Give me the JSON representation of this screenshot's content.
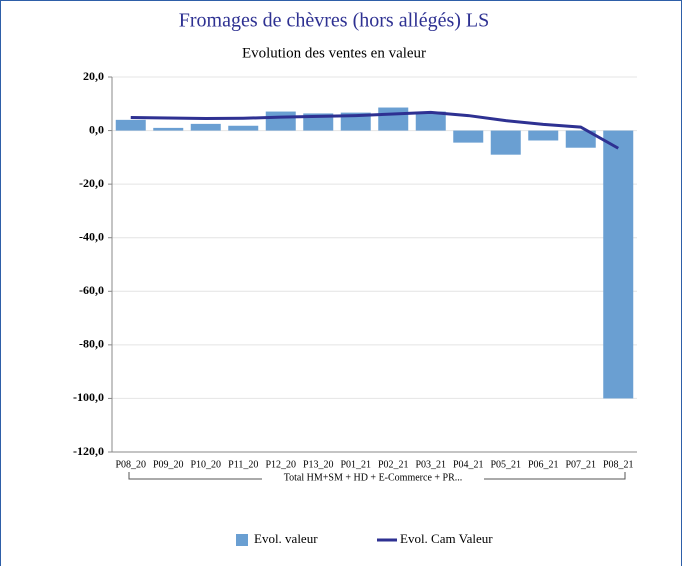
{
  "chart_data": {
    "type": "bar-line",
    "title": "Fromages de chèvres (hors allégés) LS",
    "subtitle": "Evolution des ventes en valeur",
    "categories": [
      "P08_20",
      "P09_20",
      "P10_20",
      "P11_20",
      "P12_20",
      "P13_20",
      "P01_21",
      "P02_21",
      "P03_21",
      "P04_21",
      "P05_21",
      "P06_21",
      "P07_21",
      "P08_21"
    ],
    "group_label": "Total HM+SM + HD + E-Commerce + PR...",
    "series": [
      {
        "name": "Evol.  valeur",
        "type": "bar",
        "color": "#6a9fd2",
        "values": [
          4.0,
          1.0,
          2.5,
          1.8,
          7.1,
          6.4,
          6.7,
          8.6,
          7.1,
          -4.5,
          -9.0,
          -3.7,
          -6.4,
          -100.0
        ]
      },
      {
        "name": "Evol. Cam Valeur",
        "type": "line",
        "color": "#2e3192",
        "values": [
          4.9,
          4.7,
          4.5,
          4.6,
          5.0,
          5.3,
          5.6,
          6.2,
          6.8,
          5.6,
          3.7,
          2.3,
          1.3,
          -6.6
        ]
      }
    ],
    "ylim": [
      -120,
      20
    ],
    "yticks": [
      {
        "value": -120,
        "label": "-120,0"
      },
      {
        "value": -100,
        "label": "-100,0"
      },
      {
        "value": -80,
        "label": "-80,0"
      },
      {
        "value": -60,
        "label": "-60,0"
      },
      {
        "value": -40,
        "label": "-40,0"
      },
      {
        "value": -20,
        "label": "-20,0"
      },
      {
        "value": 0,
        "label": "0,0"
      },
      {
        "value": 20,
        "label": "20,0"
      }
    ],
    "grid": true,
    "legend": "bottom"
  }
}
